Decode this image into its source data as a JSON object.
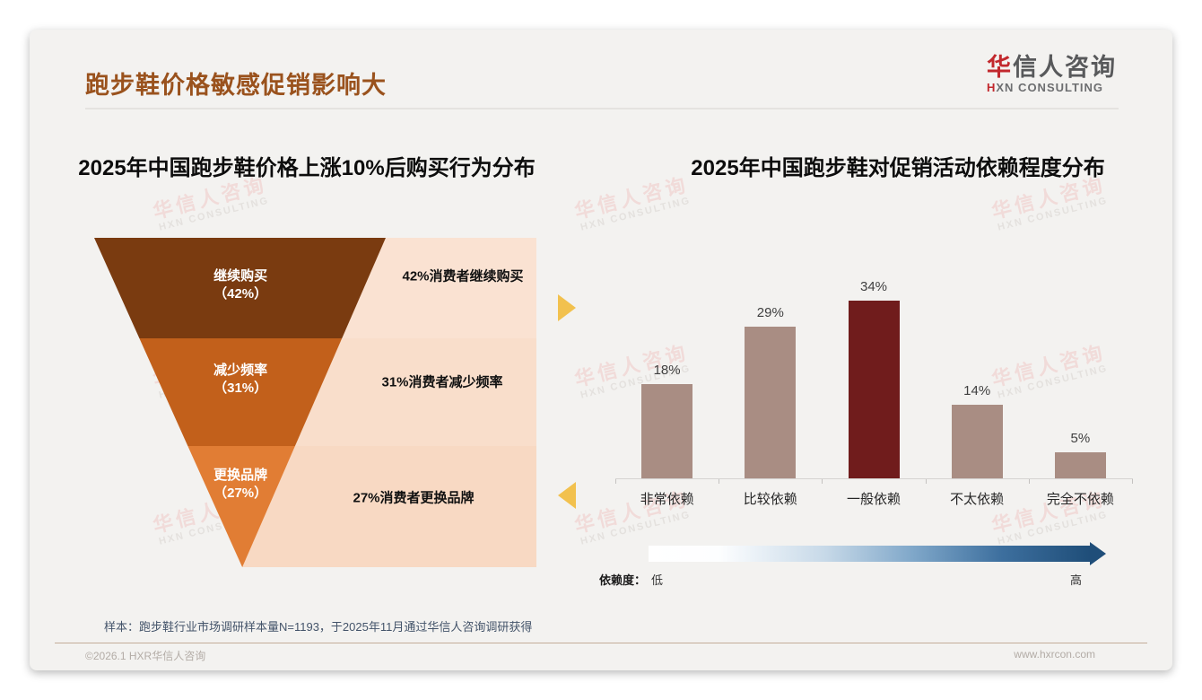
{
  "slide": {
    "title": "跑步鞋价格敏感促销影响大",
    "logo": {
      "zh_accent": "华",
      "zh_rest": "信人咨询",
      "en_accent": "H",
      "en_rest": "XN CONSULTING"
    },
    "watermark": {
      "zh": "华信人咨询",
      "en": "HXN CONSULTING"
    },
    "sample_note": "样本：跑步鞋行业市场调研样本量N=1193，于2025年11月通过华信人咨询调研获得",
    "footer": {
      "copyright": "©2026.1 HXR华信人咨询",
      "website": "www.hxrcon.com"
    }
  },
  "accent_colors": {
    "title": "#9A521D",
    "logo_red": "#C2282D",
    "arrow_gold": "#F2C14E",
    "scale_blue": "#1F4E79"
  },
  "chart_data": [
    {
      "type": "funnel",
      "title": "2025年中国跑步鞋价格上涨10%后购买行为分布",
      "categories": [
        "继续购买",
        "减少频率",
        "更换品牌"
      ],
      "values": [
        42,
        31,
        27
      ],
      "value_labels": [
        "（42%）",
        "（31%）",
        "（27%）"
      ],
      "annotations": [
        "42%消费者继续购买",
        "31%消费者减少频率",
        "27%消费者更换品牌"
      ],
      "segment_colors": [
        "#7A3B10",
        "#C2601B",
        "#E17D34"
      ],
      "panel_colors": [
        "#FAE2D2",
        "#F9DECB",
        "#F8D9C3"
      ]
    },
    {
      "type": "bar",
      "title": "2025年中国跑步鞋对促销活动依赖程度分布",
      "categories": [
        "非常依赖",
        "比较依赖",
        "一般依赖",
        "不太依赖",
        "完全不依赖"
      ],
      "values": [
        18,
        29,
        34,
        14,
        5
      ],
      "data_labels": [
        "18%",
        "29%",
        "34%",
        "14%",
        "5%"
      ],
      "bar_colors": [
        "#A98D83",
        "#A98D83",
        "#701C1C",
        "#A98D83",
        "#A98D83"
      ],
      "highlight_index": 2,
      "ylim": [
        0,
        40
      ],
      "grid": false,
      "legend": "none",
      "scale": {
        "label": "依赖度：",
        "low": "低",
        "high": "高",
        "gradient": [
          "#FFFFFF",
          "#1F4E79"
        ]
      }
    }
  ]
}
